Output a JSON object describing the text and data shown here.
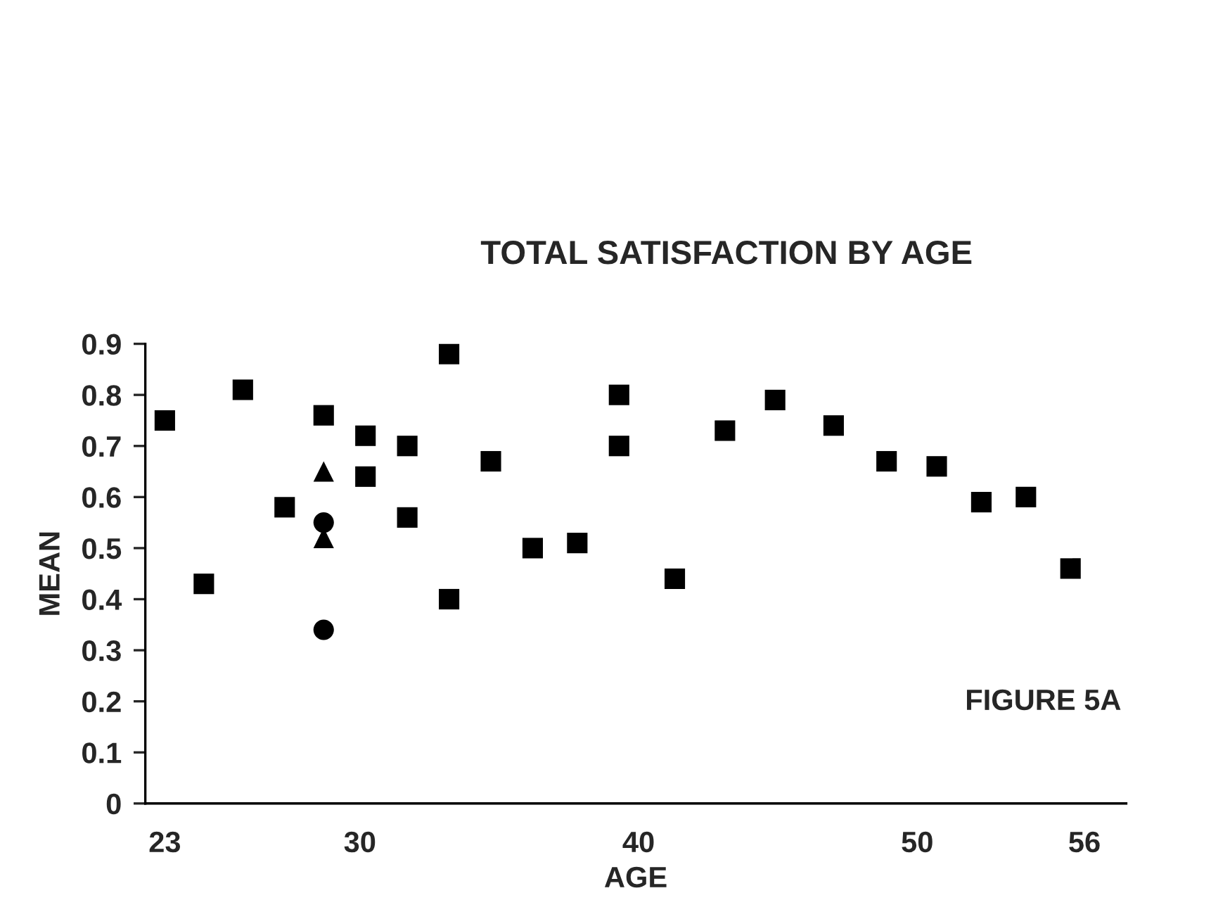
{
  "chart_data": {
    "type": "scatter",
    "title": "TOTAL SATISFACTION BY AGE",
    "xlabel": "AGE",
    "ylabel": "MEAN",
    "annotations": [
      "FIGURE 5A"
    ],
    "series": [
      {
        "color": "#000000",
        "marker": "square",
        "x": [
          23.0,
          24.4,
          25.8,
          27.3,
          28.7,
          30.2,
          30.2,
          31.7,
          31.7,
          33.2,
          33.2,
          34.7,
          36.2,
          37.8,
          39.3,
          39.3,
          41.3,
          43.1,
          44.9,
          47.0,
          48.9,
          50.7,
          52.3,
          53.9,
          55.5
        ],
        "values": [
          0.75,
          0.43,
          0.81,
          0.58,
          0.76,
          0.72,
          0.64,
          0.7,
          0.56,
          0.88,
          0.4,
          0.67,
          0.5,
          0.51,
          0.8,
          0.7,
          0.44,
          0.73,
          0.79,
          0.74,
          0.67,
          0.66,
          0.59,
          0.6,
          0.46
        ]
      },
      {
        "color": "#000000",
        "marker": "circle",
        "x": [
          28.7,
          28.7
        ],
        "values": [
          0.55,
          0.34
        ]
      },
      {
        "color": "#000000",
        "marker": "triangle",
        "x": [
          28.7,
          28.7
        ],
        "values": [
          0.65,
          0.52
        ]
      }
    ],
    "xlim": [
      22.3,
      57.5
    ],
    "xticks": [
      23,
      30,
      40,
      50,
      56
    ],
    "ylim": [
      0,
      0.9
    ],
    "yticks": [
      0,
      0.1,
      0.2,
      0.3,
      0.4,
      0.5,
      0.6,
      0.7,
      0.8,
      0.9
    ],
    "grid": false,
    "legend": false
  }
}
